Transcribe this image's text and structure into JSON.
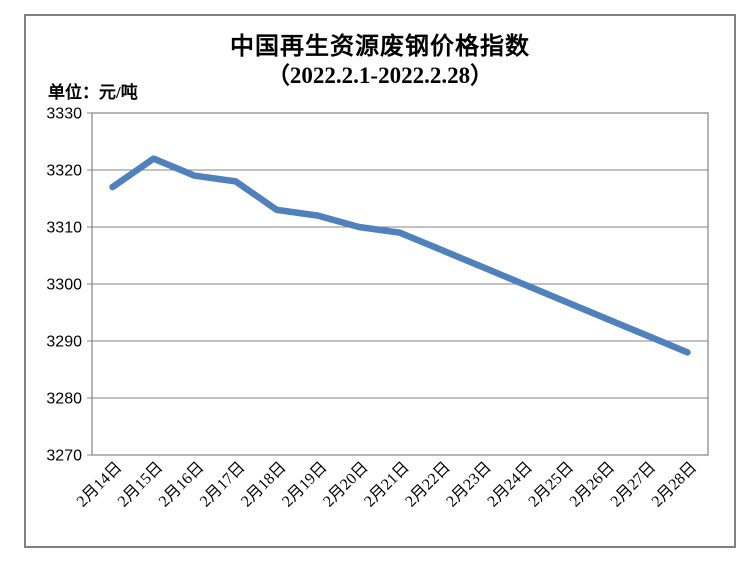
{
  "header": {
    "title": "中国再生资源废钢价格指数",
    "subtitle": "（2022.2.1-2022.2.28）",
    "unit_label": "单位：元/吨"
  },
  "chart_data": {
    "type": "line",
    "title": "中国再生资源废钢价格指数（2022.2.1-2022.2.28）",
    "ylabel": "元/吨",
    "categories": [
      "2月14日",
      "2月15日",
      "2月16日",
      "2月17日",
      "2月18日",
      "2月19日",
      "2月20日",
      "2月21日",
      "2月22日",
      "2月23日",
      "2月24日",
      "2月25日",
      "2月26日",
      "2月27日",
      "2月28日"
    ],
    "values": [
      3317,
      3322,
      3319,
      3318,
      3313,
      3312,
      3310,
      3309,
      3306,
      3303,
      3300,
      3297,
      3294,
      3291,
      3288
    ],
    "ylim": [
      3270,
      3330
    ],
    "yticks": [
      3270,
      3280,
      3290,
      3300,
      3310,
      3320,
      3330
    ],
    "grid": true,
    "legend_position": "none",
    "colors": {
      "line": "#4F81BD",
      "gridline": "#848484",
      "plot_border": "#848484",
      "outer_border": "#808080",
      "text": "#000000"
    }
  }
}
